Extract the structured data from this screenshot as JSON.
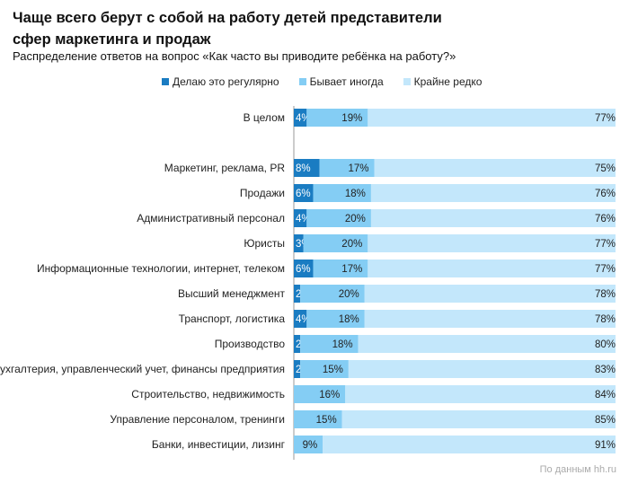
{
  "chart_data": {
    "type": "bar",
    "orientation": "horizontal",
    "stacked": true,
    "title": "Чаще всего берут с собой на работу детей представители сфер маркетинга и продаж",
    "subtitle": "Распределение ответов на вопрос «Как часто вы приводите ребёнка на работу?»",
    "legend_position": "top",
    "xlim": [
      0,
      100
    ],
    "categories": [
      "В целом",
      "Маркетинг, реклама, PR",
      "Продажи",
      "Административный персонал",
      "Юристы",
      "Информационные технологии, интернет, телеком",
      "Высший менеджмент",
      "Транспорт, логистика",
      "Производство",
      "Бухгалтерия, управленческий учет, финансы предприятия",
      "Строительство, недвижимость",
      "Управление персоналом, тренинги",
      "Банки, инвестиции, лизинг"
    ],
    "series": [
      {
        "name": "Делаю это регулярно",
        "color": "#1a7cc2",
        "values": [
          4,
          8,
          6,
          4,
          3,
          6,
          2,
          4,
          2,
          2,
          0,
          0,
          0
        ]
      },
      {
        "name": "Бывает иногда",
        "color": "#84cdf4",
        "values": [
          19,
          17,
          18,
          20,
          20,
          17,
          20,
          18,
          18,
          15,
          16,
          15,
          9
        ]
      },
      {
        "name": "Крайне редко",
        "color": "#c3e7fb",
        "values": [
          77,
          75,
          76,
          76,
          77,
          77,
          78,
          78,
          80,
          83,
          84,
          85,
          91
        ]
      }
    ],
    "source": "По данным hh.ru"
  }
}
